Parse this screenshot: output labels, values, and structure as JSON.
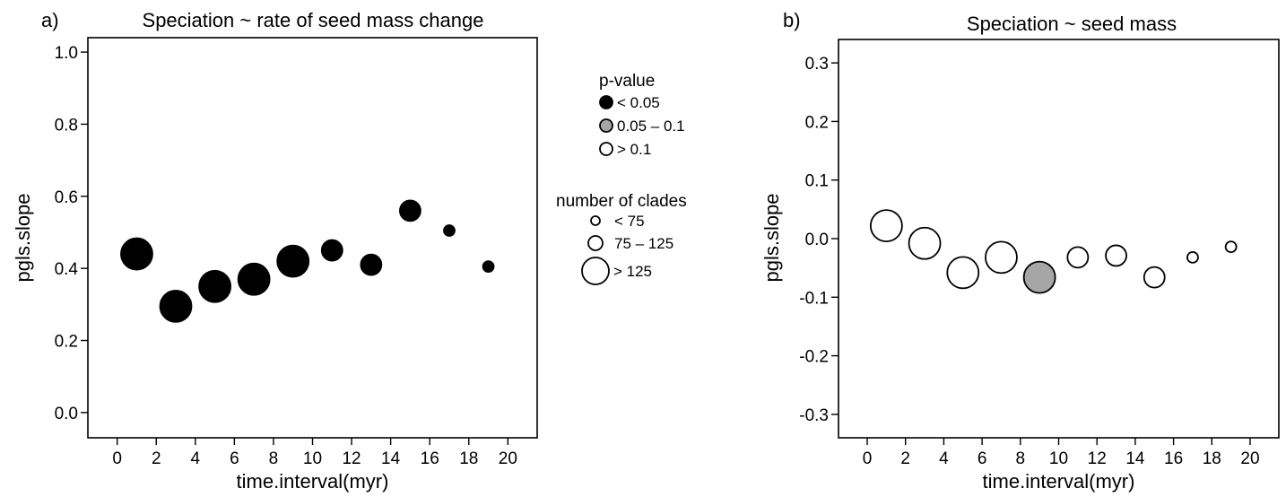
{
  "chart_data": [
    {
      "type": "scatter",
      "panel_label": "a)",
      "title": "Speciation ~ rate of seed mass change",
      "xlabel": "time.interval(myr)",
      "ylabel": "pgls.slope",
      "xlim": [
        -1.5,
        21.5
      ],
      "ylim": [
        -0.07,
        1.04
      ],
      "xticks": [
        0,
        2,
        4,
        6,
        8,
        10,
        12,
        14,
        16,
        18,
        20
      ],
      "yticks": [
        0.0,
        0.2,
        0.4,
        0.6,
        0.8,
        1.0
      ],
      "ytick_labels": [
        "0.0",
        "0.2",
        "0.4",
        "0.6",
        "0.8",
        "1.0"
      ],
      "points": [
        {
          "x": 1,
          "y": 0.44,
          "size_class": "> 125",
          "pvalue_class": "< 0.05"
        },
        {
          "x": 3,
          "y": 0.295,
          "size_class": "> 125",
          "pvalue_class": "< 0.05"
        },
        {
          "x": 5,
          "y": 0.35,
          "size_class": "> 125",
          "pvalue_class": "< 0.05"
        },
        {
          "x": 7,
          "y": 0.37,
          "size_class": "> 125",
          "pvalue_class": "< 0.05"
        },
        {
          "x": 9,
          "y": 0.42,
          "size_class": "> 125",
          "pvalue_class": "< 0.05"
        },
        {
          "x": 11,
          "y": 0.45,
          "size_class": "75 – 125",
          "pvalue_class": "< 0.05"
        },
        {
          "x": 13,
          "y": 0.41,
          "size_class": "75 – 125",
          "pvalue_class": "< 0.05"
        },
        {
          "x": 15,
          "y": 0.56,
          "size_class": "75 – 125",
          "pvalue_class": "< 0.05"
        },
        {
          "x": 17,
          "y": 0.505,
          "size_class": "< 75",
          "pvalue_class": "< 0.05"
        },
        {
          "x": 19,
          "y": 0.405,
          "size_class": "< 75",
          "pvalue_class": "< 0.05"
        }
      ]
    },
    {
      "type": "scatter",
      "panel_label": "b)",
      "title": "Speciation ~ seed mass",
      "xlabel": "time.interval(myr)",
      "ylabel": "pgls.slope",
      "xlim": [
        -1.5,
        21.5
      ],
      "ylim": [
        -0.34,
        0.34
      ],
      "xticks": [
        0,
        2,
        4,
        6,
        8,
        10,
        12,
        14,
        16,
        18,
        20
      ],
      "yticks": [
        -0.3,
        -0.2,
        -0.1,
        0.0,
        0.1,
        0.2,
        0.3
      ],
      "ytick_labels": [
        "-0.3",
        "-0.2",
        "-0.1",
        "0.0",
        "0.1",
        "0.2",
        "0.3"
      ],
      "points": [
        {
          "x": 1,
          "y": 0.022,
          "size_class": "> 125",
          "pvalue_class": "> 0.1"
        },
        {
          "x": 3,
          "y": -0.008,
          "size_class": "> 125",
          "pvalue_class": "> 0.1"
        },
        {
          "x": 5,
          "y": -0.058,
          "size_class": "> 125",
          "pvalue_class": "> 0.1"
        },
        {
          "x": 7,
          "y": -0.032,
          "size_class": "> 125",
          "pvalue_class": "> 0.1"
        },
        {
          "x": 9,
          "y": -0.066,
          "size_class": "> 125",
          "pvalue_class": "0.05 – 0.1"
        },
        {
          "x": 11,
          "y": -0.032,
          "size_class": "75 – 125",
          "pvalue_class": "> 0.1"
        },
        {
          "x": 13,
          "y": -0.029,
          "size_class": "75 – 125",
          "pvalue_class": "> 0.1"
        },
        {
          "x": 15,
          "y": -0.066,
          "size_class": "75 – 125",
          "pvalue_class": "> 0.1"
        },
        {
          "x": 17,
          "y": -0.032,
          "size_class": "< 75",
          "pvalue_class": "> 0.1"
        },
        {
          "x": 19,
          "y": -0.014,
          "size_class": "< 75",
          "pvalue_class": "> 0.1"
        }
      ]
    }
  ],
  "legend": {
    "pvalue": {
      "title": "p-value",
      "items": [
        {
          "label": "< 0.05",
          "fill": "#000000"
        },
        {
          "label": "0.05 – 0.1",
          "fill": "#a6a6a6"
        },
        {
          "label": "> 0.1",
          "fill": "#ffffff"
        }
      ]
    },
    "clades": {
      "title": "number of clades",
      "items": [
        {
          "label": "< 75"
        },
        {
          "label": "75 – 125"
        },
        {
          "label": "> 125"
        }
      ]
    }
  }
}
